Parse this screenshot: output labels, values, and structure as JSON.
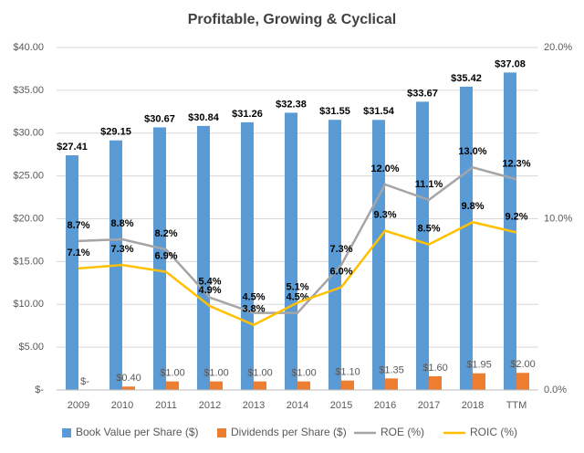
{
  "chart_data": {
    "type": "bar",
    "title": "Profitable, Growing & Cyclical",
    "categories": [
      "2009",
      "2010",
      "2011",
      "2012",
      "2013",
      "2014",
      "2015",
      "2016",
      "2017",
      "2018",
      "TTM"
    ],
    "series": [
      {
        "name": "Book Value per Share ($)",
        "color": "#5b9bd5",
        "type": "bar",
        "values": [
          27.41,
          29.15,
          30.67,
          30.84,
          31.26,
          32.38,
          31.55,
          31.54,
          33.67,
          35.42,
          37.08
        ],
        "value_labels": [
          "$27.41",
          "$29.15",
          "$30.67",
          "$30.84",
          "$31.26",
          "$32.38",
          "$31.55",
          "$31.54",
          "$33.67",
          "$35.42",
          "$37.08"
        ]
      },
      {
        "name": "Dividends per Share ($)",
        "color": "#ed7d31",
        "type": "bar",
        "values": [
          0,
          0.4,
          1.0,
          1.0,
          1.0,
          1.0,
          1.1,
          1.35,
          1.6,
          1.95,
          2.0
        ],
        "value_labels": [
          "$-",
          "$0.40",
          "$1.00",
          "$1.00",
          "$1.00",
          "$1.00",
          "$1.10",
          "$1.35",
          "$1.60",
          "$1.95",
          "$2.00"
        ]
      },
      {
        "name": "ROE (%)",
        "color": "#a5a5a5",
        "type": "line",
        "axis": "y2",
        "values": [
          8.7,
          8.8,
          8.2,
          5.4,
          4.5,
          4.5,
          7.3,
          12.0,
          11.1,
          13.0,
          12.3
        ],
        "value_labels": [
          "8.7%",
          "8.8%",
          "8.2%",
          "5.4%",
          "4.5%",
          "4.5%",
          "7.3%",
          "12.0%",
          "11.1%",
          "13.0%",
          "12.3%"
        ]
      },
      {
        "name": "ROIC (%)",
        "color": "#ffc000",
        "type": "line",
        "axis": "y2",
        "values": [
          7.1,
          7.3,
          6.9,
          4.9,
          3.8,
          5.1,
          6.0,
          9.3,
          8.5,
          9.8,
          9.2
        ],
        "value_labels": [
          "7.1%",
          "7.3%",
          "6.9%",
          "4.9%",
          "3.8%",
          "5.1%",
          "6.0%",
          "9.3%",
          "8.5%",
          "9.8%",
          "9.2%"
        ]
      }
    ],
    "ylim": [
      0,
      40
    ],
    "yticks": [
      {
        "value": 0,
        "label": "$-"
      },
      {
        "value": 5,
        "label": "$5.00"
      },
      {
        "value": 10,
        "label": "$10.00"
      },
      {
        "value": 15,
        "label": "$15.00"
      },
      {
        "value": 20,
        "label": "$20.00"
      },
      {
        "value": 25,
        "label": "$25.00"
      },
      {
        "value": 30,
        "label": "$30.00"
      },
      {
        "value": 35,
        "label": "$35.00"
      },
      {
        "value": 40,
        "label": "$40.00"
      }
    ],
    "y2lim": [
      0,
      20
    ],
    "y2ticks": [
      {
        "value": 0,
        "label": "0.0%"
      },
      {
        "value": 10,
        "label": "10.0%"
      },
      {
        "value": 20,
        "label": "20.0%"
      }
    ],
    "grid": true,
    "legend": "bottom"
  }
}
